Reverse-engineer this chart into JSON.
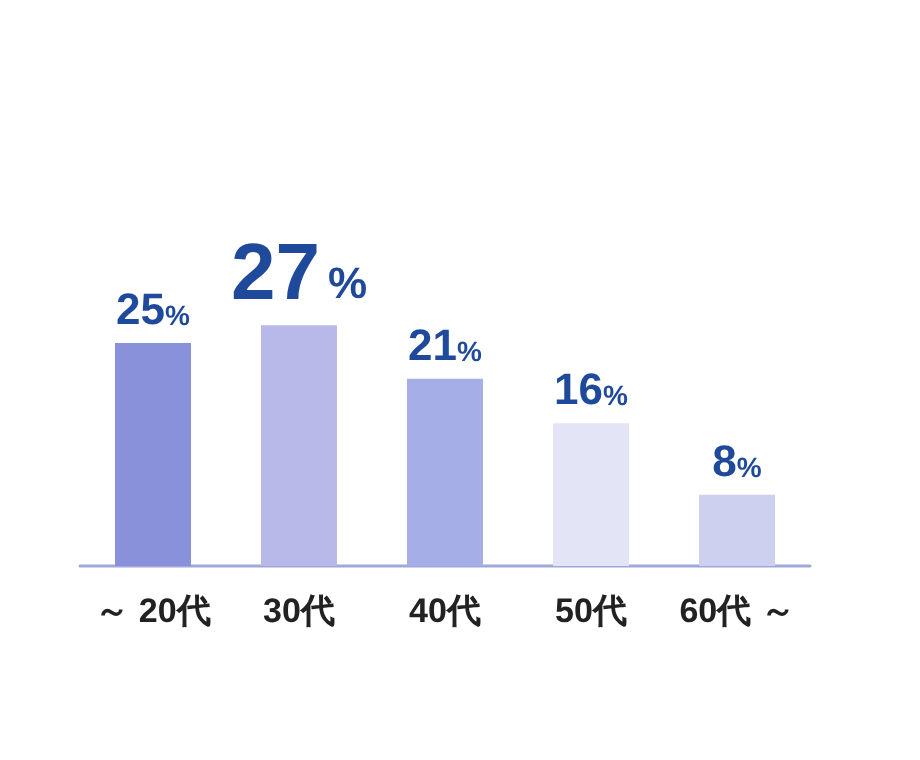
{
  "chart_data": {
    "type": "bar",
    "categories": [
      "～ 20代",
      "30代",
      "40代",
      "50代",
      "60代 ～"
    ],
    "values": [
      25,
      27,
      21,
      16,
      8
    ],
    "colors": [
      "#8891d9",
      "#b8b9e8",
      "#a6aee8",
      "#e3e4f6",
      "#cdd0ee"
    ],
    "value_labels": [
      "25%",
      "27%",
      "21%",
      "16%",
      "8%"
    ],
    "grid": false
  }
}
